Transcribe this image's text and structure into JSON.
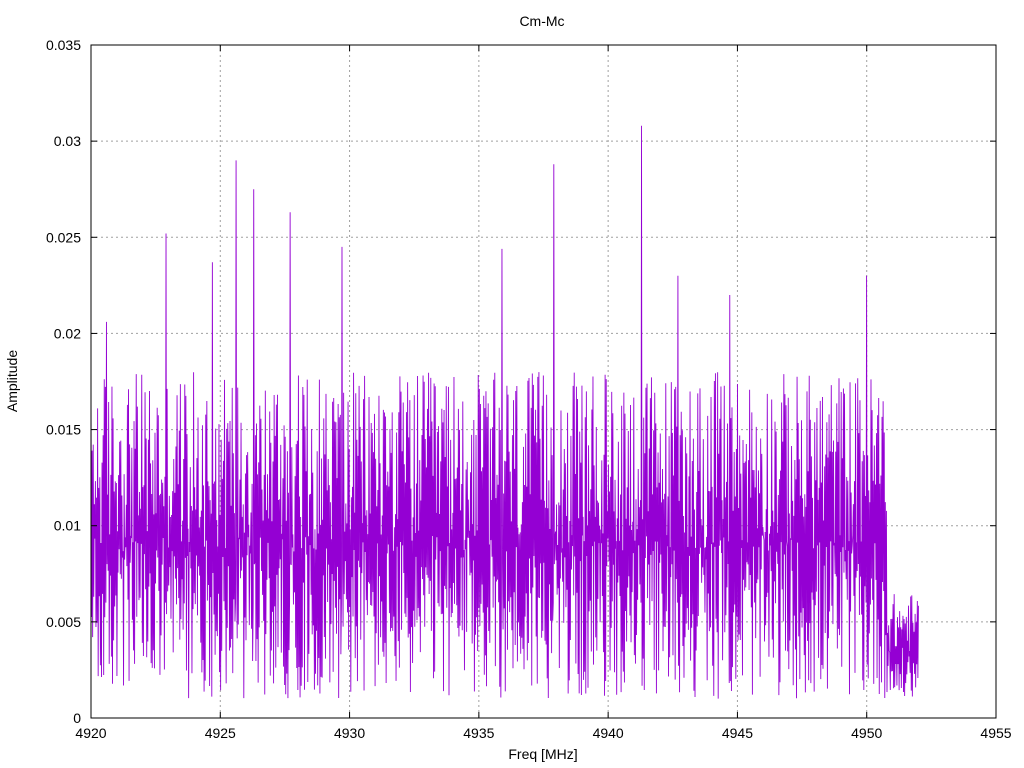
{
  "chart_data": {
    "type": "line",
    "title": "Cm-Mc",
    "xlabel": "Freq [MHz]",
    "ylabel": "Amplitude",
    "xlim": [
      4920,
      4955
    ],
    "ylim": [
      0,
      0.035
    ],
    "xticks": [
      "4920",
      "4925",
      "4930",
      "4935",
      "4940",
      "4945",
      "4950",
      "4955"
    ],
    "yticks": [
      "0",
      "0.005",
      "0.01",
      "0.015",
      "0.02",
      "0.025",
      "0.03",
      "0.035"
    ],
    "grid": true,
    "line_color": "#9400d3",
    "series": [
      {
        "x_start": 4920,
        "x_end": 4952.0,
        "peaks": [
          {
            "x": 4920.6,
            "y": 0.0206
          },
          {
            "x": 4922.9,
            "y": 0.0252
          },
          {
            "x": 4924.7,
            "y": 0.0237
          },
          {
            "x": 4925.6,
            "y": 0.029
          },
          {
            "x": 4926.3,
            "y": 0.0275
          },
          {
            "x": 4927.7,
            "y": 0.0263
          },
          {
            "x": 4929.7,
            "y": 0.0245
          },
          {
            "x": 4935.9,
            "y": 0.0244
          },
          {
            "x": 4937.9,
            "y": 0.0288
          },
          {
            "x": 4941.3,
            "y": 0.0308
          },
          {
            "x": 4942.7,
            "y": 0.023
          },
          {
            "x": 4944.7,
            "y": 0.022
          },
          {
            "x": 4950.0,
            "y": 0.023
          }
        ],
        "typical_min": 0.001,
        "typical_max": 0.018,
        "tail_start": 4950.8,
        "tail_max": 0.0065
      }
    ]
  }
}
